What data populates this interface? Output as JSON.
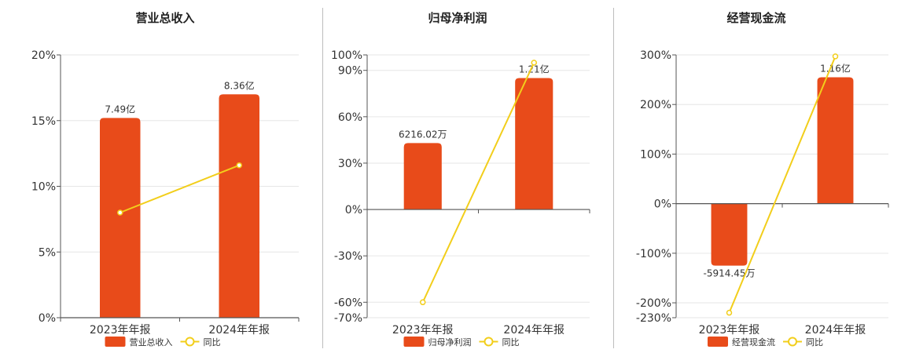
{
  "colors": {
    "bar": "#E84B1A",
    "line": "#F2CE1B",
    "grid": "#e6e6e6",
    "axis": "#555555",
    "text": "#333333"
  },
  "legend": {
    "line_label": "同比"
  },
  "chart_data": [
    {
      "type": "bar",
      "title": "营业总收入",
      "categories": [
        "2023年年报",
        "2024年年报"
      ],
      "series": [
        {
          "name": "营业总收入",
          "type": "bar",
          "values": [
            15.2,
            17.0
          ],
          "labels": [
            "7.49亿",
            "8.36亿"
          ]
        },
        {
          "name": "同比",
          "type": "line",
          "values": [
            8.0,
            11.6
          ]
        }
      ],
      "ylim": [
        0,
        20
      ],
      "yticks": [
        0,
        5,
        10,
        15,
        20
      ],
      "ytick_labels": [
        "0%",
        "5%",
        "10%",
        "15%",
        "20%"
      ]
    },
    {
      "type": "bar",
      "title": "归母净利润",
      "categories": [
        "2023年年报",
        "2024年年报"
      ],
      "series": [
        {
          "name": "归母净利润",
          "type": "bar",
          "values": [
            43,
            85
          ],
          "labels": [
            "6216.02万",
            "1.21亿"
          ]
        },
        {
          "name": "同比",
          "type": "line",
          "values": [
            -60,
            95
          ]
        }
      ],
      "ylim": [
        -70,
        100
      ],
      "yticks": [
        -70,
        -60,
        -30,
        0,
        30,
        60,
        90,
        100
      ],
      "ytick_labels": [
        "-70%",
        "-60%",
        "-30%",
        "0%",
        "30%",
        "60%",
        "90%",
        "100%"
      ]
    },
    {
      "type": "bar",
      "title": "经营现金流",
      "categories": [
        "2023年年报",
        "2024年年报"
      ],
      "series": [
        {
          "name": "经营现金流",
          "type": "bar",
          "values": [
            -125,
            255
          ],
          "labels": [
            "-5914.45万",
            "1.16亿"
          ]
        },
        {
          "name": "同比",
          "type": "line",
          "values": [
            -220,
            297
          ]
        }
      ],
      "ylim": [
        -230,
        300
      ],
      "yticks": [
        -230,
        -200,
        -100,
        0,
        100,
        200,
        300
      ],
      "ytick_labels": [
        "-230%",
        "-200%",
        "-100%",
        "0%",
        "100%",
        "200%",
        "300%"
      ]
    }
  ]
}
